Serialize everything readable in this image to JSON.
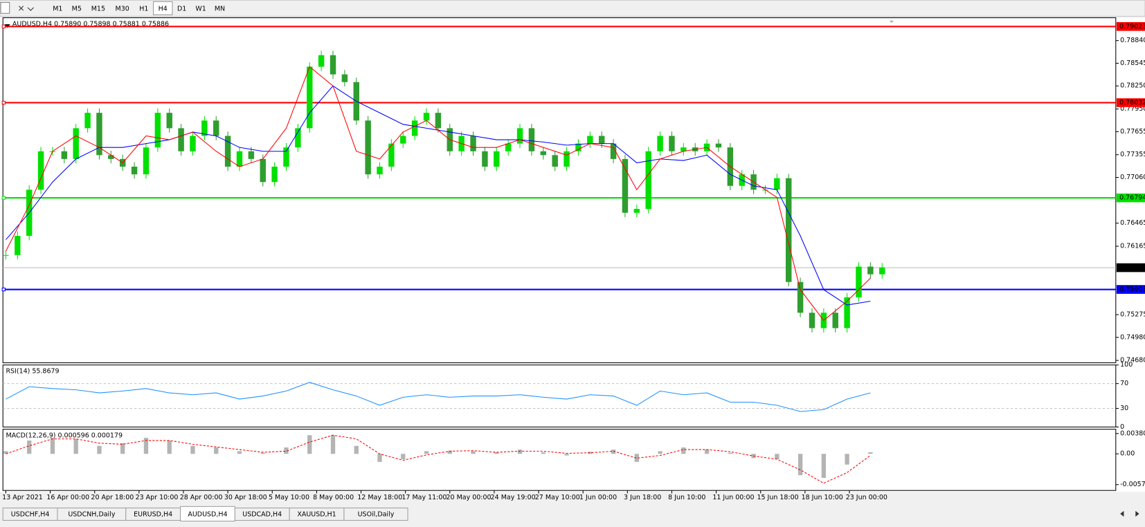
{
  "toolbar": {
    "timeframes": [
      "M1",
      "M5",
      "M15",
      "M30",
      "H1",
      "H4",
      "D1",
      "W1",
      "MN"
    ],
    "active": "H4"
  },
  "chart_data": [
    {
      "type": "candlestick",
      "title": "AUDUSD,H4  0.75890 0.75898 0.75881 0.75886",
      "values": [
        0.7605,
        0.763,
        0.769,
        0.774,
        0.774,
        0.773,
        0.777,
        0.779,
        0.7735,
        0.773,
        0.772,
        0.771,
        0.7745,
        0.779,
        0.777,
        0.774,
        0.776,
        0.778,
        0.776,
        0.772,
        0.774,
        0.773,
        0.77,
        0.772,
        0.7745,
        0.777,
        0.785,
        0.7865,
        0.784,
        0.783,
        0.778,
        0.771,
        0.772,
        0.775,
        0.776,
        0.778,
        0.779,
        0.777,
        0.774,
        0.776,
        0.774,
        0.772,
        0.774,
        0.775,
        0.777,
        0.774,
        0.7735,
        0.772,
        0.774,
        0.775,
        0.776,
        0.775,
        0.773,
        0.766,
        0.7665,
        0.774,
        0.776,
        0.774,
        0.7745,
        0.774,
        0.775,
        0.7745,
        0.7695,
        0.771,
        0.769,
        0.769,
        0.7705,
        0.757,
        0.753,
        0.751,
        0.753,
        0.751,
        0.755,
        0.759,
        0.758,
        0.7589
      ],
      "up_color": "#00e000",
      "down_color": "#2e9e2e",
      "ylim": [
        0.74649,
        0.79137
      ],
      "yticks": [
        {
          "value": 0.7884,
          "label": "0.78840"
        },
        {
          "value": 0.78545,
          "label": "0.78545"
        },
        {
          "value": 0.7825,
          "label": "0.78250"
        },
        {
          "value": 0.7795,
          "label": "0.77950"
        },
        {
          "value": 0.77655,
          "label": "0.77655"
        },
        {
          "value": 0.77355,
          "label": "0.77355"
        },
        {
          "value": 0.7706,
          "label": "0.77060"
        },
        {
          "value": 0.76465,
          "label": "0.76465"
        },
        {
          "value": 0.76165,
          "label": "0.76165"
        },
        {
          "value": 0.75275,
          "label": "0.75275"
        },
        {
          "value": 0.7498,
          "label": "0.74980"
        },
        {
          "value": 0.7468,
          "label": "0.74680"
        }
      ],
      "levels": [
        {
          "value": 0.79023,
          "label": "0.79023",
          "color": "#ff0000"
        },
        {
          "value": 0.78032,
          "label": "0.78032",
          "color": "#ff0000"
        },
        {
          "value": 0.76794,
          "label": "0.76794",
          "color": "#00e000"
        },
        {
          "value": 0.75603,
          "label": "0.75603",
          "color": "#0000ff"
        }
      ],
      "bid": {
        "value": 0.75886,
        "label": "0.75886"
      },
      "lines": [
        {
          "color": "#0000ff",
          "values": [
            0.7625,
            0.766,
            0.77,
            0.773,
            0.7745,
            0.7745,
            0.775,
            0.7755,
            0.7765,
            0.776,
            0.7745,
            0.774,
            0.774,
            0.779,
            0.7825,
            0.7805,
            0.779,
            0.7775,
            0.777,
            0.7765,
            0.776,
            0.7755,
            0.7755,
            0.7752,
            0.7748,
            0.775,
            0.775,
            0.7725,
            0.773,
            0.7728,
            0.7735,
            0.771,
            0.7695,
            0.769,
            0.763,
            0.756,
            0.754,
            0.7545
          ]
        },
        {
          "color": "#ff0000",
          "values": [
            0.761,
            0.767,
            0.774,
            0.776,
            0.7745,
            0.7725,
            0.776,
            0.7755,
            0.7765,
            0.774,
            0.772,
            0.773,
            0.777,
            0.785,
            0.7825,
            0.774,
            0.773,
            0.7765,
            0.778,
            0.7755,
            0.7745,
            0.7745,
            0.7755,
            0.7745,
            0.7735,
            0.775,
            0.7745,
            0.769,
            0.773,
            0.774,
            0.7745,
            0.772,
            0.77,
            0.768,
            0.756,
            0.752,
            0.7545,
            0.7575
          ]
        }
      ]
    },
    {
      "type": "line",
      "title": "RSI(14) 55.8679",
      "values": [
        45,
        65,
        62,
        60,
        55,
        58,
        62,
        55,
        52,
        55,
        45,
        50,
        58,
        72,
        60,
        50,
        35,
        48,
        52,
        48,
        50,
        50,
        52,
        48,
        45,
        52,
        50,
        35,
        58,
        52,
        55,
        40,
        40,
        35,
        25,
        28,
        45,
        55
      ],
      "color": "#1e90ff",
      "ylim": [
        0,
        100
      ],
      "yticks": [
        100,
        70,
        30,
        0
      ],
      "grid": true
    },
    {
      "type": "macd",
      "title": "MACD(12,26,9) 0.000596 0.000179",
      "values": [
        0.0005,
        0.0025,
        0.003,
        0.0028,
        0.0015,
        0.002,
        0.003,
        0.0025,
        0.0015,
        0.0012,
        0.0005,
        0.0002,
        0.0012,
        0.0035,
        0.0035,
        0.0015,
        -0.0015,
        -0.001,
        0.0005,
        0.0006,
        0.0005,
        0.0003,
        0.0008,
        0.0003,
        -0.0003,
        0.0004,
        0.0008,
        -0.0015,
        0.0005,
        0.0012,
        0.0008,
        0.0002,
        -0.0008,
        -0.001,
        -0.004,
        -0.0045,
        -0.002,
        0.0003
      ],
      "color": "#b4b4b4",
      "signal": {
        "color": "#ff0000",
        "values": [
          0.0,
          0.0015,
          0.0028,
          0.0028,
          0.002,
          0.0018,
          0.0025,
          0.0025,
          0.0018,
          0.0013,
          0.0008,
          0.0003,
          0.0005,
          0.0022,
          0.0035,
          0.0028,
          0.0,
          -0.0012,
          -0.0002,
          0.0005,
          0.0006,
          0.0003,
          0.0005,
          0.0005,
          0.0001,
          0.0002,
          0.0005,
          -0.0008,
          -0.0003,
          0.0008,
          0.0008,
          0.0004,
          -0.0004,
          -0.001,
          -0.003,
          -0.0055,
          -0.0035,
          -0.0003
        ]
      },
      "ylim": [
        -0.00685,
        0.00462
      ],
      "yticks": [
        0.003808,
        {
          "value": 0,
          "label": "0.00"
        },
        -0.005757
      ],
      "xticks": [
        {
          "value": 0,
          "label": "13 Apr 2021"
        },
        {
          "value": 3.8,
          "label": "16 Apr 00:00"
        },
        {
          "value": 7.6,
          "label": "20 Apr 18:00"
        },
        {
          "value": 11.4,
          "label": "23 Apr 10:00"
        },
        {
          "value": 15.2,
          "label": "28 Apr 00:00"
        },
        {
          "value": 19,
          "label": "30 Apr 18:00"
        },
        {
          "value": 22.8,
          "label": "5 May 10:00"
        },
        {
          "value": 26.6,
          "label": "8 May 00:00"
        },
        {
          "value": 30.4,
          "label": "12 May 18:00"
        },
        {
          "value": 34.2,
          "label": "17 May 11:00"
        },
        {
          "value": 38,
          "label": "20 May 00:00"
        },
        {
          "value": 41.8,
          "label": "24 May 19:00"
        },
        {
          "value": 45.6,
          "label": "27 May 10:00"
        },
        {
          "value": 49.4,
          "label": "1 Jun 00:00"
        },
        {
          "value": 53.2,
          "label": "3 Jun 18:00"
        },
        {
          "value": 57,
          "label": "8 Jun 10:00"
        },
        {
          "value": 60.8,
          "label": "11 Jun 00:00"
        },
        {
          "value": 64.6,
          "label": "15 Jun 18:00"
        },
        {
          "value": 68.4,
          "label": "18 Jun 10:00"
        },
        {
          "value": 72.2,
          "label": "23 Jun 00:00"
        }
      ]
    }
  ],
  "tabs": {
    "items": [
      "USDCHF,H4",
      "USDCNH,Daily",
      "EURUSD,H4",
      "AUDUSD,H4",
      "USDCAD,H4",
      "XAUUSD,H1",
      "USOil,Daily"
    ],
    "active": "AUDUSD,H4"
  }
}
